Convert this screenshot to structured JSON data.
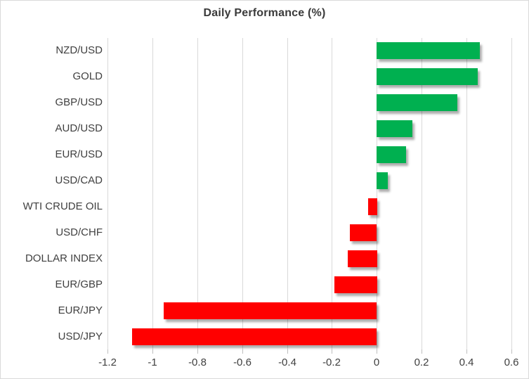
{
  "chart_data": {
    "type": "bar",
    "orientation": "horizontal",
    "title": "Daily Performance (%)",
    "categories": [
      "NZD/USD",
      "GOLD",
      "GBP/USD",
      "AUD/USD",
      "EUR/USD",
      "USD/CAD",
      "WTI CRUDE OIL",
      "USD/CHF",
      "DOLLAR INDEX",
      "EUR/GBP",
      "EUR/JPY",
      "USD/JPY"
    ],
    "values": [
      0.46,
      0.45,
      0.36,
      0.16,
      0.13,
      0.05,
      -0.04,
      -0.12,
      -0.13,
      -0.19,
      -0.95,
      -1.09
    ],
    "xlabel": "",
    "ylabel": "",
    "xlim": [
      -1.2,
      0.6
    ],
    "xticks": [
      -1.2,
      -1,
      -0.8,
      -0.6,
      -0.4,
      -0.2,
      0,
      0.2,
      0.4,
      0.6
    ],
    "xtick_labels": [
      "-1.2",
      "-1",
      "-0.8",
      "-0.6",
      "-0.4",
      "-0.2",
      "0",
      "0.2",
      "0.4",
      "0.6"
    ],
    "grid": true,
    "legend": false,
    "positive_color": "#00B050",
    "negative_color": "#FF0000",
    "gridline_color": "#D9D9D9",
    "tick_color": "#BFBFBF",
    "label_color": "#404040",
    "title_color": "#3A3A3A"
  }
}
